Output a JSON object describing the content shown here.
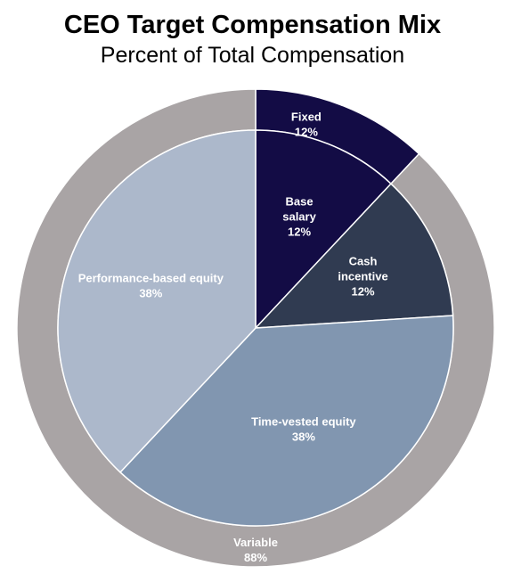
{
  "chart_data": {
    "type": "pie",
    "title": "CEO Target Compensation Mix",
    "subtitle": "Percent of Total Compensation",
    "inner": [
      {
        "name": "Base salary",
        "label_lines": [
          "Base",
          "salary"
        ],
        "value": 12,
        "value_label": "12%",
        "color": "#130c45",
        "text_color": "#ffffff"
      },
      {
        "name": "Cash incentive",
        "label_lines": [
          "Cash",
          "incentive"
        ],
        "value": 12,
        "value_label": "12%",
        "color": "#303b51",
        "text_color": "#ffffff"
      },
      {
        "name": "Time-vested equity",
        "label_lines": [
          "Time-vested equity"
        ],
        "value": 38,
        "value_label": "38%",
        "color": "#8196b0",
        "text_color": "#ffffff"
      },
      {
        "name": "Performance-based equity",
        "label_lines": [
          "Performance-based equity"
        ],
        "value": 38,
        "value_label": "38%",
        "color": "#acb8cb",
        "text_color": "#ffffff"
      }
    ],
    "outer": [
      {
        "name": "Fixed",
        "label_lines": [
          "Fixed"
        ],
        "value": 12,
        "value_label": "12%",
        "color": "#130c45",
        "text_color": "#ffffff"
      },
      {
        "name": "Variable",
        "label_lines": [
          "Variable"
        ],
        "value": 88,
        "value_label": "88%",
        "color": "#a9a4a5",
        "text_color": "#ffffff"
      }
    ]
  }
}
